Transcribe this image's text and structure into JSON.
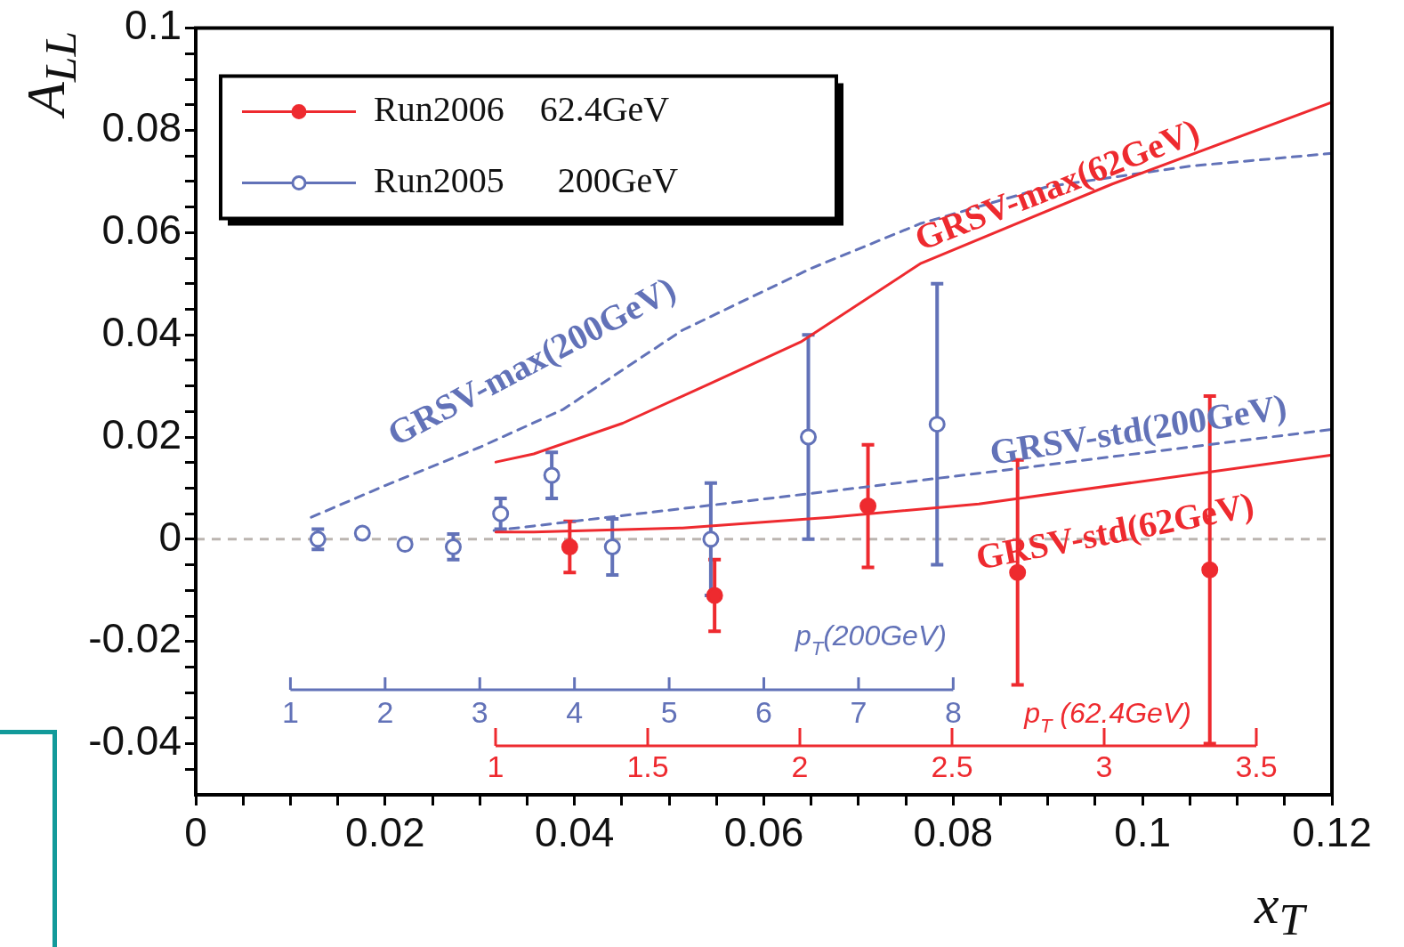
{
  "chart_data": {
    "type": "scatter",
    "xlabel": "x$_{T}$",
    "ylabel": "A$_{LL}$",
    "xlim": [
      0,
      0.12
    ],
    "ylim": [
      -0.05,
      0.1
    ],
    "xticks": [
      0,
      {
        "value": 0.005,
        "label": null
      },
      {
        "value": 0.01,
        "label": null
      },
      {
        "value": 0.015,
        "label": null
      },
      0.02,
      {
        "value": 0.025,
        "label": null
      },
      {
        "value": 0.03,
        "label": null
      },
      {
        "value": 0.035,
        "label": null
      },
      0.04,
      {
        "value": 0.045,
        "label": null
      },
      {
        "value": 0.05,
        "label": null
      },
      {
        "value": 0.055,
        "label": null
      },
      0.06,
      {
        "value": 0.065,
        "label": null
      },
      {
        "value": 0.07,
        "label": null
      },
      {
        "value": 0.075,
        "label": null
      },
      0.08,
      {
        "value": 0.085,
        "label": null
      },
      {
        "value": 0.09,
        "label": null
      },
      {
        "value": 0.095,
        "label": null
      },
      0.1,
      {
        "value": 0.105,
        "label": null
      },
      {
        "value": 0.11,
        "label": null
      },
      {
        "value": 0.115,
        "label": null
      },
      0.12
    ],
    "yticks": [
      {
        "value": -0.045,
        "label": null
      },
      -0.04,
      {
        "value": -0.035,
        "label": null
      },
      {
        "value": -0.03,
        "label": null
      },
      {
        "value": -0.025,
        "label": null
      },
      -0.02,
      {
        "value": -0.015,
        "label": null
      },
      {
        "value": -0.01,
        "label": null
      },
      {
        "value": -0.005,
        "label": null
      },
      0,
      {
        "value": 0.005,
        "label": null
      },
      {
        "value": 0.01,
        "label": null
      },
      {
        "value": 0.015,
        "label": null
      },
      0.02,
      {
        "value": 0.025,
        "label": null
      },
      {
        "value": 0.03,
        "label": null
      },
      {
        "value": 0.035,
        "label": null
      },
      0.04,
      {
        "value": 0.045,
        "label": null
      },
      {
        "value": 0.05,
        "label": null
      },
      {
        "value": 0.055,
        "label": null
      },
      0.06,
      {
        "value": 0.065,
        "label": null
      },
      {
        "value": 0.07,
        "label": null
      },
      {
        "value": 0.075,
        "label": null
      },
      0.08,
      {
        "value": 0.085,
        "label": null
      },
      {
        "value": 0.09,
        "label": null
      },
      {
        "value": 0.095,
        "label": null
      },
      0.1
    ],
    "x2label": "p$_{T}$(200GeV)",
    "x2lim": [
      0,
      12
    ],
    "x2ticks": [
      1,
      2,
      3,
      4,
      5,
      6,
      7,
      8
    ],
    "annotations": [
      "p$_{T}$ (62.4GeV)",
      "1",
      "1.5",
      "2",
      "2.5",
      "3",
      "3.5"
    ],
    "legend": "top left",
    "grid": false,
    "ref_lines": [
      {
        "axis": "y",
        "value": 0,
        "color": "#bbb5b0",
        "line_style": "dashed"
      }
    ],
    "series": [
      {
        "name": "Run2006  62.4GeV",
        "marker": "circle",
        "color": "#ee2a2f",
        "x": [
          0.0395,
          0.0548,
          0.071,
          0.0868,
          0.1071
        ],
        "values": [
          -0.0015,
          -0.011,
          0.0065,
          -0.0065,
          -0.006
        ],
        "errors": [
          0.005,
          0.007,
          0.012,
          0.022,
          [
            -0.04,
            0.028
          ]
        ]
      },
      {
        "name": "Run2005   200GeV",
        "marker": "circle",
        "color": "#6272b8",
        "x": [
          0.0129,
          0.0176,
          0.0221,
          0.0272,
          0.0322,
          0.0376,
          0.044,
          0.0544,
          0.0647,
          0.0783
        ],
        "values": [
          0,
          0.0012,
          -0.001,
          -0.0015,
          0.005,
          0.0125,
          -0.0015,
          0,
          0.02,
          0.0225
        ],
        "errors": [
          0.002,
          null,
          null,
          0.0025,
          0.003,
          0.0045,
          0.0055,
          0.011,
          0.02,
          0.0275
        ]
      },
      {
        "name": "GRSV-max(62GeV)",
        "type": "line",
        "marker": "none",
        "line_style": "solid",
        "color": "#ee2a2f",
        "x": [
          0.0317,
          0.0357,
          0.0451,
          0.0545,
          0.0639,
          0.0766,
          0.0968,
          0.12
        ],
        "values": [
          0.0151,
          0.0167,
          0.0227,
          0.0306,
          0.0386,
          0.054,
          0.0695,
          0.0855
        ]
      },
      {
        "name": "GRSV-std(62GeV)",
        "type": "line",
        "marker": "none",
        "line_style": "solid",
        "color": "#ee2a2f",
        "x": [
          0.0317,
          0.0357,
          0.0514,
          0.067,
          0.0827,
          0.12
        ],
        "values": [
          0.0014,
          0.0014,
          0.0022,
          0.0043,
          0.0069,
          0.0165
        ]
      },
      {
        "name": "GRSV-max(200GeV)",
        "type": "line",
        "marker": "none",
        "line_style": "dashed",
        "color": "#6272b8",
        "x": [
          0.0122,
          0.02,
          0.03,
          0.0388,
          0.0514,
          0.065,
          0.0766,
          0.09,
          0.105,
          0.12
        ],
        "values": [
          0.0043,
          0.0105,
          0.018,
          0.0254,
          0.0409,
          0.053,
          0.0618,
          0.069,
          0.073,
          0.0755
        ]
      },
      {
        "name": "GRSV-std(200GeV)",
        "type": "line",
        "marker": "none",
        "line_style": "dashed",
        "color": "#6272b8",
        "x": [
          0.0315,
          0.0357,
          0.0514,
          0.067,
          0.0827,
          0.12
        ],
        "values": [
          0.0017,
          0.0026,
          0.006,
          0.0094,
          0.0129,
          0.0215
        ]
      }
    ]
  }
}
